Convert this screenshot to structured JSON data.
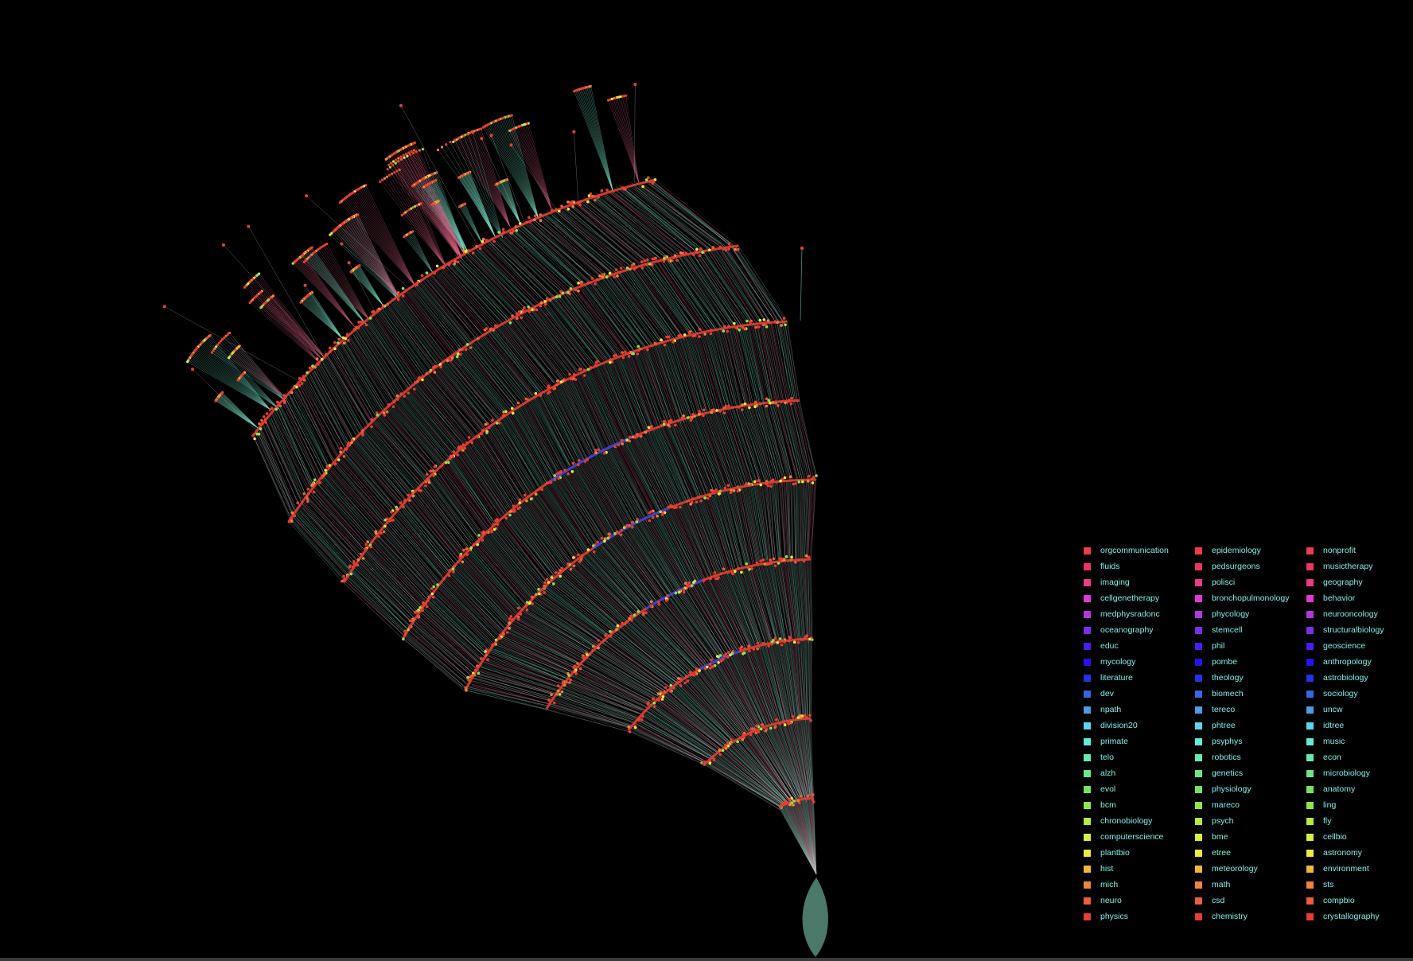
{
  "legend": {
    "columns": [
      [
        {
          "label": "orgcommunication",
          "color": "#f03a48"
        },
        {
          "label": "fluids",
          "color": "#ee3461"
        },
        {
          "label": "imaging",
          "color": "#e93b86"
        },
        {
          "label": "cellgenetherapy",
          "color": "#e238d8"
        },
        {
          "label": "medphysradonc",
          "color": "#b235e0"
        },
        {
          "label": "oceanography",
          "color": "#7b2ee8"
        },
        {
          "label": "educ",
          "color": "#4b1cf0"
        },
        {
          "label": "mycology",
          "color": "#2613ec"
        },
        {
          "label": "literature",
          "color": "#2032e8"
        },
        {
          "label": "dev",
          "color": "#3a64e6"
        },
        {
          "label": "npath",
          "color": "#4d9be6"
        },
        {
          "label": "division20",
          "color": "#5ad7ec"
        },
        {
          "label": "primate",
          "color": "#60eed6"
        },
        {
          "label": "telo",
          "color": "#66ecb0"
        },
        {
          "label": "alzh",
          "color": "#6ae888"
        },
        {
          "label": "evol",
          "color": "#74e45a"
        },
        {
          "label": "bcm",
          "color": "#8ee648"
        },
        {
          "label": "chronobiology",
          "color": "#b4ea42"
        },
        {
          "label": "computerscience",
          "color": "#d8ee40"
        },
        {
          "label": "plantbio",
          "color": "#ecea3e"
        },
        {
          "label": "hist",
          "color": "#f2b63c"
        },
        {
          "label": "mich",
          "color": "#f0843a"
        },
        {
          "label": "neuro",
          "color": "#ec5e36"
        },
        {
          "label": "physics",
          "color": "#e83e30"
        }
      ],
      [
        {
          "label": "epidemiology",
          "color": "#f03a48"
        },
        {
          "label": "pedsurgeons",
          "color": "#ee3461"
        },
        {
          "label": "polisci",
          "color": "#e93b86"
        },
        {
          "label": "bronchopulmonology",
          "color": "#e238d8"
        },
        {
          "label": "phycology",
          "color": "#b235e0"
        },
        {
          "label": "stemcell",
          "color": "#7b2ee8"
        },
        {
          "label": "phil",
          "color": "#4b1cf0"
        },
        {
          "label": "pombe",
          "color": "#2613ec"
        },
        {
          "label": "theology",
          "color": "#2032e8"
        },
        {
          "label": "biomech",
          "color": "#3a64e6"
        },
        {
          "label": "tereco",
          "color": "#4d9be6"
        },
        {
          "label": "phtree",
          "color": "#5ad7ec"
        },
        {
          "label": "psyphys",
          "color": "#60eed6"
        },
        {
          "label": "robotics",
          "color": "#66ecb0"
        },
        {
          "label": "genetics",
          "color": "#6ae888"
        },
        {
          "label": "physiology",
          "color": "#74e45a"
        },
        {
          "label": "mareco",
          "color": "#8ee648"
        },
        {
          "label": "psych",
          "color": "#b4ea42"
        },
        {
          "label": "bme",
          "color": "#d8ee40"
        },
        {
          "label": "etree",
          "color": "#ecea3e"
        },
        {
          "label": "meteorology",
          "color": "#f2b63c"
        },
        {
          "label": "math",
          "color": "#f0843a"
        },
        {
          "label": "csd",
          "color": "#ec5e36"
        },
        {
          "label": "chemistry",
          "color": "#e83e30"
        }
      ],
      [
        {
          "label": "nonprofit",
          "color": "#f03a48"
        },
        {
          "label": "musictherapy",
          "color": "#ee3461"
        },
        {
          "label": "geography",
          "color": "#e93b86"
        },
        {
          "label": "behavior",
          "color": "#e238d8"
        },
        {
          "label": "neurooncology",
          "color": "#b235e0"
        },
        {
          "label": "structuralbiology",
          "color": "#7b2ee8"
        },
        {
          "label": "geoscience",
          "color": "#4b1cf0"
        },
        {
          "label": "anthropology",
          "color": "#2613ec"
        },
        {
          "label": "astrobiology",
          "color": "#2032e8"
        },
        {
          "label": "sociology",
          "color": "#3a64e6"
        },
        {
          "label": "uncw",
          "color": "#4d9be6"
        },
        {
          "label": "idtree",
          "color": "#5ad7ec"
        },
        {
          "label": "music",
          "color": "#60eed6"
        },
        {
          "label": "econ",
          "color": "#66ecb0"
        },
        {
          "label": "microbiology",
          "color": "#6ae888"
        },
        {
          "label": "anatomy",
          "color": "#74e45a"
        },
        {
          "label": "ling",
          "color": "#8ee648"
        },
        {
          "label": "fly",
          "color": "#b4ea42"
        },
        {
          "label": "cellbio",
          "color": "#d8ee40"
        },
        {
          "label": "astronomy",
          "color": "#ecea3e"
        },
        {
          "label": "environment",
          "color": "#f2b63c"
        },
        {
          "label": "sts",
          "color": "#f0843a"
        },
        {
          "label": "compbio",
          "color": "#ec5e36"
        },
        {
          "label": "crystallography",
          "color": "#e83e30"
        }
      ]
    ]
  },
  "edge_colors": {
    "primary": "#7ef2d6",
    "secondary": "#e8688c",
    "faint": "#f2f2f2"
  },
  "background": "#000000"
}
